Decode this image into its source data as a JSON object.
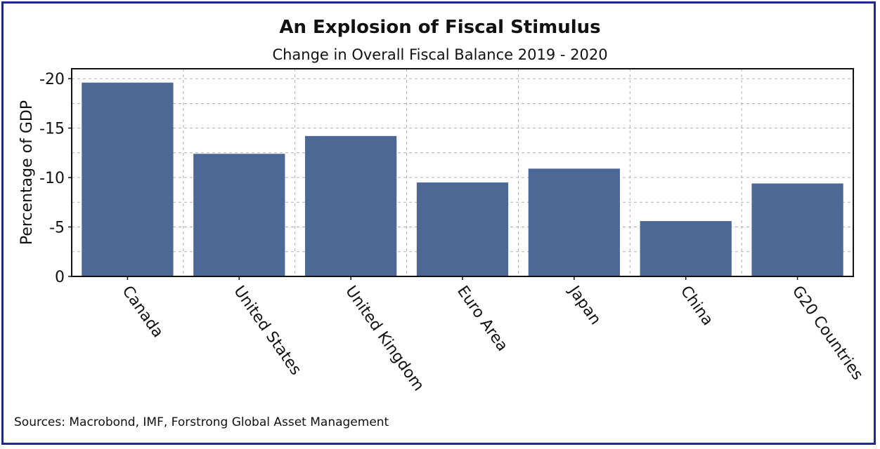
{
  "title": "An Explosion of Fiscal Stimulus",
  "subtitle": "Change in Overall Fiscal Balance 2019 - 2020",
  "source": "Sources: Macrobond, IMF, Forstrong Global Asset Management",
  "colors": {
    "bar": "#4e6895",
    "frame": "#1f2a8c",
    "grid": "#b0b0b0"
  },
  "chart_data": {
    "type": "bar",
    "title": "An Explosion of Fiscal Stimulus",
    "subtitle": "Change in Overall Fiscal Balance 2019 - 2020",
    "xlabel": "",
    "ylabel": "Percentage of GDP",
    "categories": [
      "Canada",
      "United States",
      "United Kingdom",
      "Euro Area",
      "Japan",
      "China",
      "G20 Countries"
    ],
    "values": [
      -19.6,
      -12.4,
      -14.2,
      -9.5,
      -10.9,
      -5.6,
      -9.4
    ],
    "ylim": [
      0,
      -21
    ],
    "y_axis_inverted": true,
    "yticks": [
      0,
      -5,
      -10,
      -15,
      -20
    ],
    "ytick_labels": [
      "0",
      "-5",
      "-10",
      "-15",
      "-20"
    ],
    "grid": true,
    "legend": "none"
  }
}
